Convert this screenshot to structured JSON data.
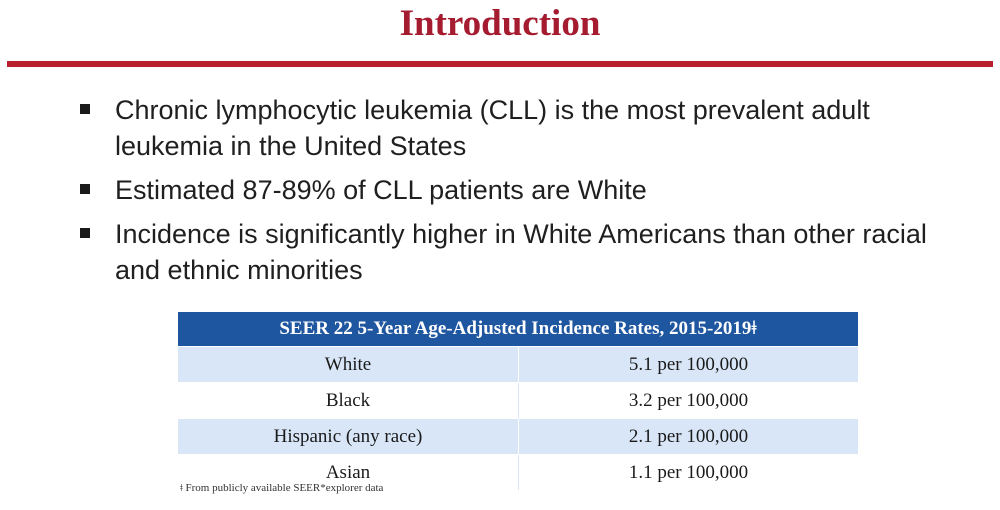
{
  "slide": {
    "title": "Introduction",
    "bullets": [
      "Chronic lymphocytic leukemia (CLL) is the most prevalent adult leukemia in the United States",
      "Estimated 87-89% of CLL patients are White",
      "Incidence is significantly higher in White Americans than other racial and ethnic minorities"
    ]
  },
  "table": {
    "header": "SEER 22 5-Year Age-Adjusted Incidence Rates, 2015-2019ǂ",
    "rows": [
      {
        "race": "White",
        "rate": "5.1 per 100,000"
      },
      {
        "race": "Black",
        "rate": "3.2 per 100,000"
      },
      {
        "race": "Hispanic (any race)",
        "rate": "2.1 per 100,000"
      },
      {
        "race": "Asian",
        "rate": "1.1 per 100,000"
      }
    ],
    "footnote": "ǂ From publicly available SEER*explorer data"
  },
  "colors": {
    "title": "#a51c30",
    "rule": "#b8202f",
    "table_header": "#1f56a0",
    "row_shade": "#d8e6f7"
  }
}
